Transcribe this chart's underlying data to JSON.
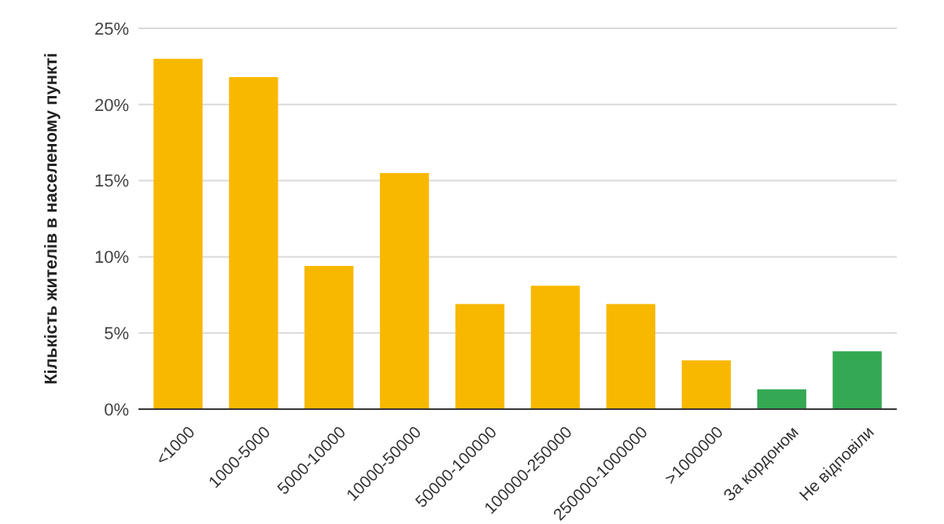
{
  "chart_data": {
    "type": "bar",
    "ylabel": "Кількість жителів в населеному пункті",
    "categories": [
      "<1000",
      "1000-5000",
      "5000-10000",
      "10000-50000",
      "50000-100000",
      "100000-250000",
      "250000-1000000",
      ">1000000",
      "За кордоном",
      "Не відповіли"
    ],
    "values": [
      23.0,
      21.8,
      9.4,
      15.5,
      6.9,
      8.1,
      6.9,
      3.2,
      1.3,
      3.8
    ],
    "colors": [
      "#f9b800",
      "#f9b800",
      "#f9b800",
      "#f9b800",
      "#f9b800",
      "#f9b800",
      "#f9b800",
      "#f9b800",
      "#34a853",
      "#34a853"
    ],
    "ylim": [
      0,
      25
    ],
    "yticks": [
      {
        "value": 0,
        "label": "0%"
      },
      {
        "value": 5,
        "label": "5%"
      },
      {
        "value": 10,
        "label": "10%"
      },
      {
        "value": 15,
        "label": "15%"
      },
      {
        "value": 20,
        "label": "20%"
      },
      {
        "value": 25,
        "label": "25%"
      }
    ],
    "grid": "y"
  }
}
